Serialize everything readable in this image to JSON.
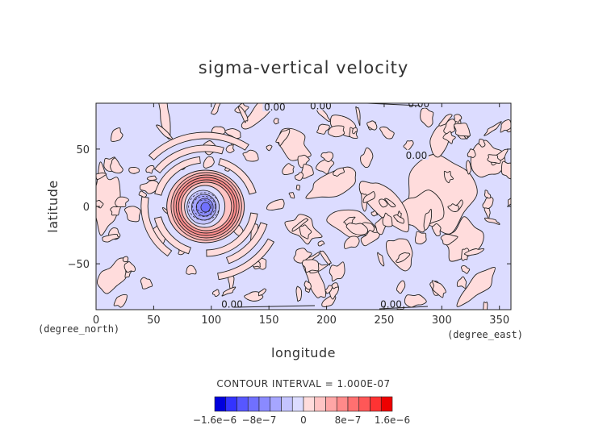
{
  "chart_data": {
    "type": "heatmap",
    "title": "sigma-vertical velocity",
    "xlabel": "longitude",
    "ylabel": "latitude",
    "x_unit": "(degree_east)",
    "y_unit": "(degree_north)",
    "xlim": [
      0,
      360
    ],
    "ylim": [
      -90,
      90
    ],
    "xticks": [
      0,
      50,
      100,
      150,
      200,
      250,
      300,
      350
    ],
    "yticks": [
      -50,
      0,
      50
    ],
    "contour_interval_text": "CONTOUR INTERVAL = 1.000E-07",
    "contour_interval": 1e-07,
    "contour_labels": [
      {
        "text": "0.00",
        "x": 155,
        "y": 85
      },
      {
        "text": "0.00",
        "x": 195,
        "y": 86
      },
      {
        "text": "0.00",
        "x": 280,
        "y": 88
      },
      {
        "text": "0.00",
        "x": 278,
        "y": 43
      },
      {
        "text": "0.00",
        "x": 118,
        "y": -87
      },
      {
        "text": "0.00",
        "x": 256,
        "y": -87
      }
    ],
    "features": [
      {
        "name": "central downdraft",
        "lon": 95,
        "lat": 0,
        "min_value": -1.6e-06
      },
      {
        "name": "updraft ring",
        "lon": 95,
        "lat": 0,
        "max_value": 9e-07
      }
    ],
    "colorbar": {
      "min": -1.6e-06,
      "max": 1.6e-06,
      "tick_labels": [
        "−1.6e−6",
        "−8e−7",
        "0",
        "8e−7",
        "1.6e−6"
      ],
      "colors": [
        "#0000dd",
        "#3333ff",
        "#5757ff",
        "#7070ff",
        "#8a8aff",
        "#a6a6ff",
        "#c4c4ff",
        "#dcdcff",
        "#ffdcdc",
        "#ffc4c4",
        "#ffa6a6",
        "#ff8a8a",
        "#ff7070",
        "#ff5757",
        "#ff3333",
        "#ee0000"
      ]
    },
    "grid": false,
    "legend": "bottom"
  }
}
